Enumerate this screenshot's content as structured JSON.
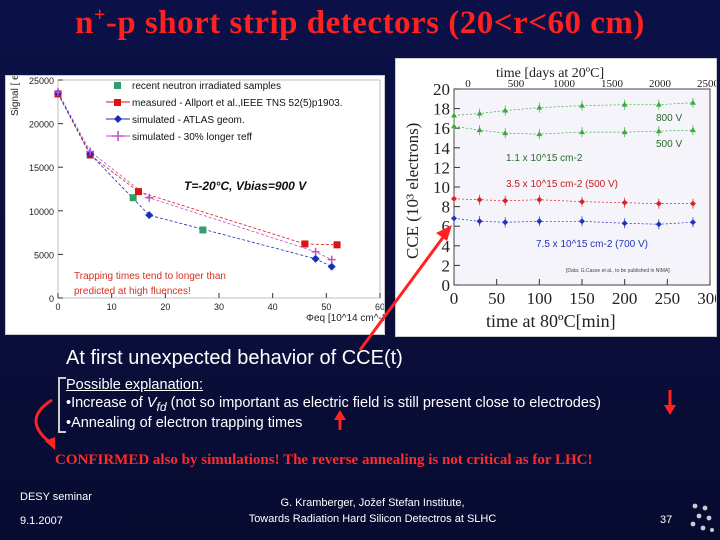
{
  "title": {
    "main": "n",
    "sup": "+",
    "rest": "-p short strip detectors (20<r<60 cm)"
  },
  "chart_data": [
    {
      "type": "scatter",
      "ylabel": "Signal [ e ]",
      "xlabel": "Φeq [10^14 cm^-2]",
      "xlim": [
        0,
        60
      ],
      "ylim": [
        0,
        25000
      ],
      "x_ticks": [
        "0",
        "10",
        "20",
        "30",
        "40",
        "50",
        "60"
      ],
      "y_ticks": [
        "0",
        "5000",
        "10000",
        "15000",
        "20000",
        "25000"
      ],
      "annotation": "T=-20°C, Vbias=900 V",
      "note": "Trapping times tend to longer than predicted at high fluences!",
      "series": [
        {
          "name": "recent neutron irradiated samples",
          "color": "#2f9e6a",
          "marker": "square",
          "points": [
            [
              14,
              11500
            ],
            [
              27,
              7800
            ]
          ]
        },
        {
          "name": "measured - Allport et al.,IEEE TNS 52(5)p1903.",
          "color": "#dd1111",
          "marker": "square",
          "points": [
            [
              0,
              23400
            ],
            [
              6,
              16400
            ],
            [
              15,
              12200
            ],
            [
              46,
              6200
            ],
            [
              52,
              6100
            ]
          ]
        },
        {
          "name": "simulated - ATLAS geom.",
          "color": "#1a2fb8",
          "marker": "diamond",
          "points": [
            [
              0,
              23500
            ],
            [
              6,
              16500
            ],
            [
              17,
              9500
            ],
            [
              48,
              4500
            ],
            [
              51,
              3600
            ]
          ]
        },
        {
          "name": "simulated - 30% longer τeff",
          "color": "#c24bd0",
          "marker": "plus",
          "points": [
            [
              0,
              23600
            ],
            [
              6,
              16800
            ],
            [
              17,
              11500
            ],
            [
              48,
              5300
            ],
            [
              51,
              4400
            ]
          ]
        }
      ]
    },
    {
      "type": "scatter",
      "ylabel": "CCE (10³ electrons)",
      "xlabel": "time at 80ºC[min]",
      "x2label": "time [days at 20ºC]",
      "xlim": [
        0,
        300
      ],
      "ylim": [
        0,
        20
      ],
      "x_ticks": [
        "0",
        "50",
        "100",
        "150",
        "200",
        "250",
        "300"
      ],
      "x2_ticks": [
        "0",
        "500",
        "1000",
        "1500",
        "2000",
        "2500"
      ],
      "y_ticks": [
        "0",
        "2",
        "4",
        "6",
        "8",
        "10",
        "12",
        "14",
        "16",
        "18",
        "20"
      ],
      "credit": "[Data: G.Casse et al., to be published in NIMA]",
      "series": [
        {
          "name": "800 V",
          "label": "1.1 x 10^15 cm-2",
          "color": "#3caa3c",
          "points": [
            [
              0,
              17.3
            ],
            [
              30,
              17.5
            ],
            [
              60,
              17.8
            ],
            [
              100,
              18.1
            ],
            [
              150,
              18.3
            ],
            [
              200,
              18.4
            ],
            [
              240,
              18.4
            ],
            [
              280,
              18.6
            ]
          ]
        },
        {
          "name": "500 V",
          "label": "1.1 x 10^15 cm-2",
          "color": "#3caa3c",
          "points": [
            [
              0,
              16.2
            ],
            [
              30,
              15.8
            ],
            [
              60,
              15.5
            ],
            [
              100,
              15.4
            ],
            [
              150,
              15.6
            ],
            [
              200,
              15.6
            ],
            [
              240,
              15.7
            ],
            [
              280,
              15.8
            ]
          ]
        },
        {
          "name": "3.5 x 10^15 cm-2 (500 V)",
          "color": "#dd2222",
          "points": [
            [
              0,
              8.8
            ],
            [
              30,
              8.7
            ],
            [
              60,
              8.6
            ],
            [
              100,
              8.7
            ],
            [
              150,
              8.5
            ],
            [
              200,
              8.4
            ],
            [
              240,
              8.3
            ],
            [
              280,
              8.3
            ]
          ]
        },
        {
          "name": "7.5 x 10^15 cm-2 (700 V)",
          "color": "#2233bb",
          "points": [
            [
              0,
              6.8
            ],
            [
              30,
              6.5
            ],
            [
              60,
              6.4
            ],
            [
              100,
              6.5
            ],
            [
              150,
              6.5
            ],
            [
              200,
              6.3
            ],
            [
              240,
              6.2
            ],
            [
              280,
              6.4
            ]
          ]
        }
      ]
    }
  ],
  "body": {
    "unexpected": "At first unexpected behavior of CCE(t)",
    "possible": "Possible explanation:",
    "bullet1_pre": "•Increase of  ",
    "bullet1_var": "V",
    "bullet1_sub": "fd",
    "bullet1_post": " (not so important as electric field is still present close to electrodes)",
    "bullet2": "•Annealing of electron trapping times",
    "confirmed": "CONFIRMED also by simulations! The reverse annealing is not critical as for LHC!"
  },
  "footer": {
    "left1": "DESY seminar",
    "left2": "9.1.2007",
    "center1": "G. Kramberger, Jožef Stefan Institute,",
    "center2": "Towards Radiation Hard Silicon Detectros at SLHC",
    "page": "37"
  },
  "colors": {
    "title": "#ff2020",
    "arrow": "#ff2222",
    "background": "#0a0e3a"
  }
}
